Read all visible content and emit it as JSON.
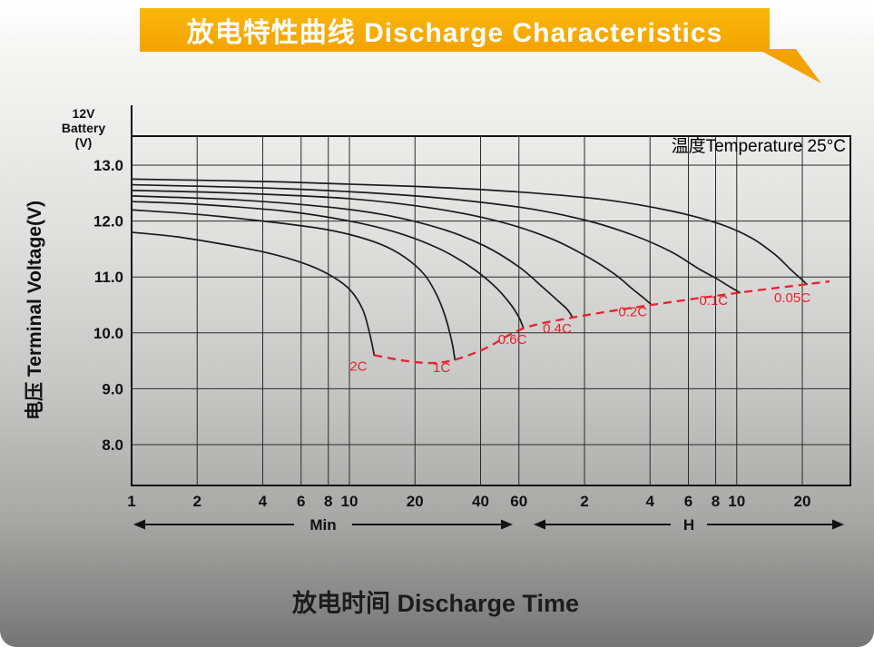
{
  "header": {
    "title": "放电特性曲线 Discharge Characteristics"
  },
  "yaxis": {
    "unit_lines": [
      "12V",
      "Battery",
      "(V)"
    ]
  },
  "xaxis": {
    "minute_label": "Min",
    "hour_label": "H"
  },
  "colors": {
    "banner": "#f6ac05",
    "banner_text": "#ffffff",
    "curve": "#1b1b1b",
    "grid": "#2a2a2a",
    "cutoff_red": "#e8222d"
  },
  "chart_data": {
    "type": "line",
    "title": "放电特性曲线 Discharge Characteristics",
    "xlabel": "放电时间 Discharge Time",
    "ylabel": "电压 Terminal Voltage(V)",
    "annotation": "温度Temperature 25°C",
    "x_scale": "log",
    "x_unit": "minutes",
    "xlim_minutes": [
      1,
      2000
    ],
    "ylim": [
      7.3,
      13.5
    ],
    "y_ticks": [
      13.0,
      12.0,
      11.0,
      10.0,
      9.0,
      8.0
    ],
    "y_tick_labels": [
      "13.0",
      "12.0",
      "11.0",
      "10.0",
      "9.0",
      "8.0"
    ],
    "x_ticks": {
      "minutes": [
        1,
        2,
        4,
        6,
        8,
        10,
        20,
        40,
        60
      ],
      "hours": [
        2,
        4,
        6,
        8,
        10,
        20
      ]
    },
    "x_tick_labels": {
      "minutes": [
        "1",
        "2",
        "4",
        "6",
        "8",
        "10",
        "20",
        "40",
        "60"
      ],
      "hours": [
        "2",
        "4",
        "6",
        "8",
        "10",
        "20"
      ]
    },
    "curve_color": "#1b1b1b",
    "grid_color": "#2a2a2a",
    "series": [
      {
        "name": "2C",
        "label_at": [
          11,
          9.32
        ],
        "points": [
          [
            1,
            11.8
          ],
          [
            1.6,
            11.72
          ],
          [
            2.5,
            11.6
          ],
          [
            4,
            11.45
          ],
          [
            6,
            11.26
          ],
          [
            8,
            11.05
          ],
          [
            10,
            10.78
          ],
          [
            11.5,
            10.42
          ],
          [
            12.4,
            9.98
          ],
          [
            13,
            9.6
          ]
        ]
      },
      {
        "name": "1C",
        "label_at": [
          26.5,
          9.3
        ],
        "points": [
          [
            1,
            12.2
          ],
          [
            2,
            12.12
          ],
          [
            4,
            12.0
          ],
          [
            7,
            11.88
          ],
          [
            10,
            11.76
          ],
          [
            14,
            11.58
          ],
          [
            18,
            11.35
          ],
          [
            22,
            11.05
          ],
          [
            25,
            10.7
          ],
          [
            27.5,
            10.3
          ],
          [
            29.5,
            9.85
          ],
          [
            30.5,
            9.52
          ]
        ]
      },
      {
        "name": "0.6C",
        "label_at": [
          56,
          9.8
        ],
        "points": [
          [
            1,
            12.35
          ],
          [
            2,
            12.3
          ],
          [
            5,
            12.18
          ],
          [
            10,
            12.0
          ],
          [
            17,
            11.78
          ],
          [
            26,
            11.5
          ],
          [
            36,
            11.18
          ],
          [
            46,
            10.85
          ],
          [
            54,
            10.55
          ],
          [
            60,
            10.28
          ],
          [
            63,
            10.08
          ]
        ]
      },
      {
        "name": "0.4C",
        "label_at": [
          90,
          10.0
        ],
        "points": [
          [
            1,
            12.45
          ],
          [
            3,
            12.38
          ],
          [
            8,
            12.25
          ],
          [
            15,
            12.1
          ],
          [
            27,
            11.85
          ],
          [
            42,
            11.55
          ],
          [
            60,
            11.18
          ],
          [
            78,
            10.8
          ],
          [
            92,
            10.55
          ],
          [
            100,
            10.42
          ],
          [
            106,
            10.27
          ]
        ]
      },
      {
        "name": "0.2C",
        "label_at": [
          200,
          10.3
        ],
        "points": [
          [
            1,
            12.55
          ],
          [
            3,
            12.5
          ],
          [
            10,
            12.4
          ],
          [
            25,
            12.22
          ],
          [
            50,
            11.98
          ],
          [
            85,
            11.68
          ],
          [
            125,
            11.35
          ],
          [
            165,
            11.05
          ],
          [
            200,
            10.78
          ],
          [
            225,
            10.62
          ],
          [
            244,
            10.5
          ]
        ]
      },
      {
        "name": "0.1C",
        "label_at": [
          470,
          10.5
        ],
        "points": [
          [
            1,
            12.65
          ],
          [
            5,
            12.58
          ],
          [
            20,
            12.45
          ],
          [
            60,
            12.25
          ],
          [
            120,
            12.02
          ],
          [
            200,
            11.75
          ],
          [
            300,
            11.45
          ],
          [
            400,
            11.15
          ],
          [
            480,
            10.98
          ],
          [
            560,
            10.82
          ],
          [
            620,
            10.72
          ]
        ]
      },
      {
        "name": "0.05C",
        "label_at": [
          1080,
          10.55
        ],
        "points": [
          [
            1,
            12.75
          ],
          [
            5,
            12.7
          ],
          [
            20,
            12.62
          ],
          [
            60,
            12.52
          ],
          [
            150,
            12.38
          ],
          [
            300,
            12.18
          ],
          [
            500,
            11.95
          ],
          [
            700,
            11.7
          ],
          [
            900,
            11.4
          ],
          [
            1050,
            11.15
          ],
          [
            1180,
            10.97
          ],
          [
            1260,
            10.87
          ]
        ]
      }
    ],
    "cutoff_line": {
      "name": "end-of-discharge-voltage",
      "color": "#e8222d",
      "style": "dashed",
      "points": [
        [
          13,
          9.6
        ],
        [
          18,
          9.5
        ],
        [
          24,
          9.46
        ],
        [
          30.5,
          9.52
        ],
        [
          42,
          9.72
        ],
        [
          63,
          10.08
        ],
        [
          108,
          10.28
        ],
        [
          244,
          10.5
        ],
        [
          620,
          10.72
        ],
        [
          1260,
          10.87
        ],
        [
          1600,
          10.92
        ]
      ]
    }
  }
}
